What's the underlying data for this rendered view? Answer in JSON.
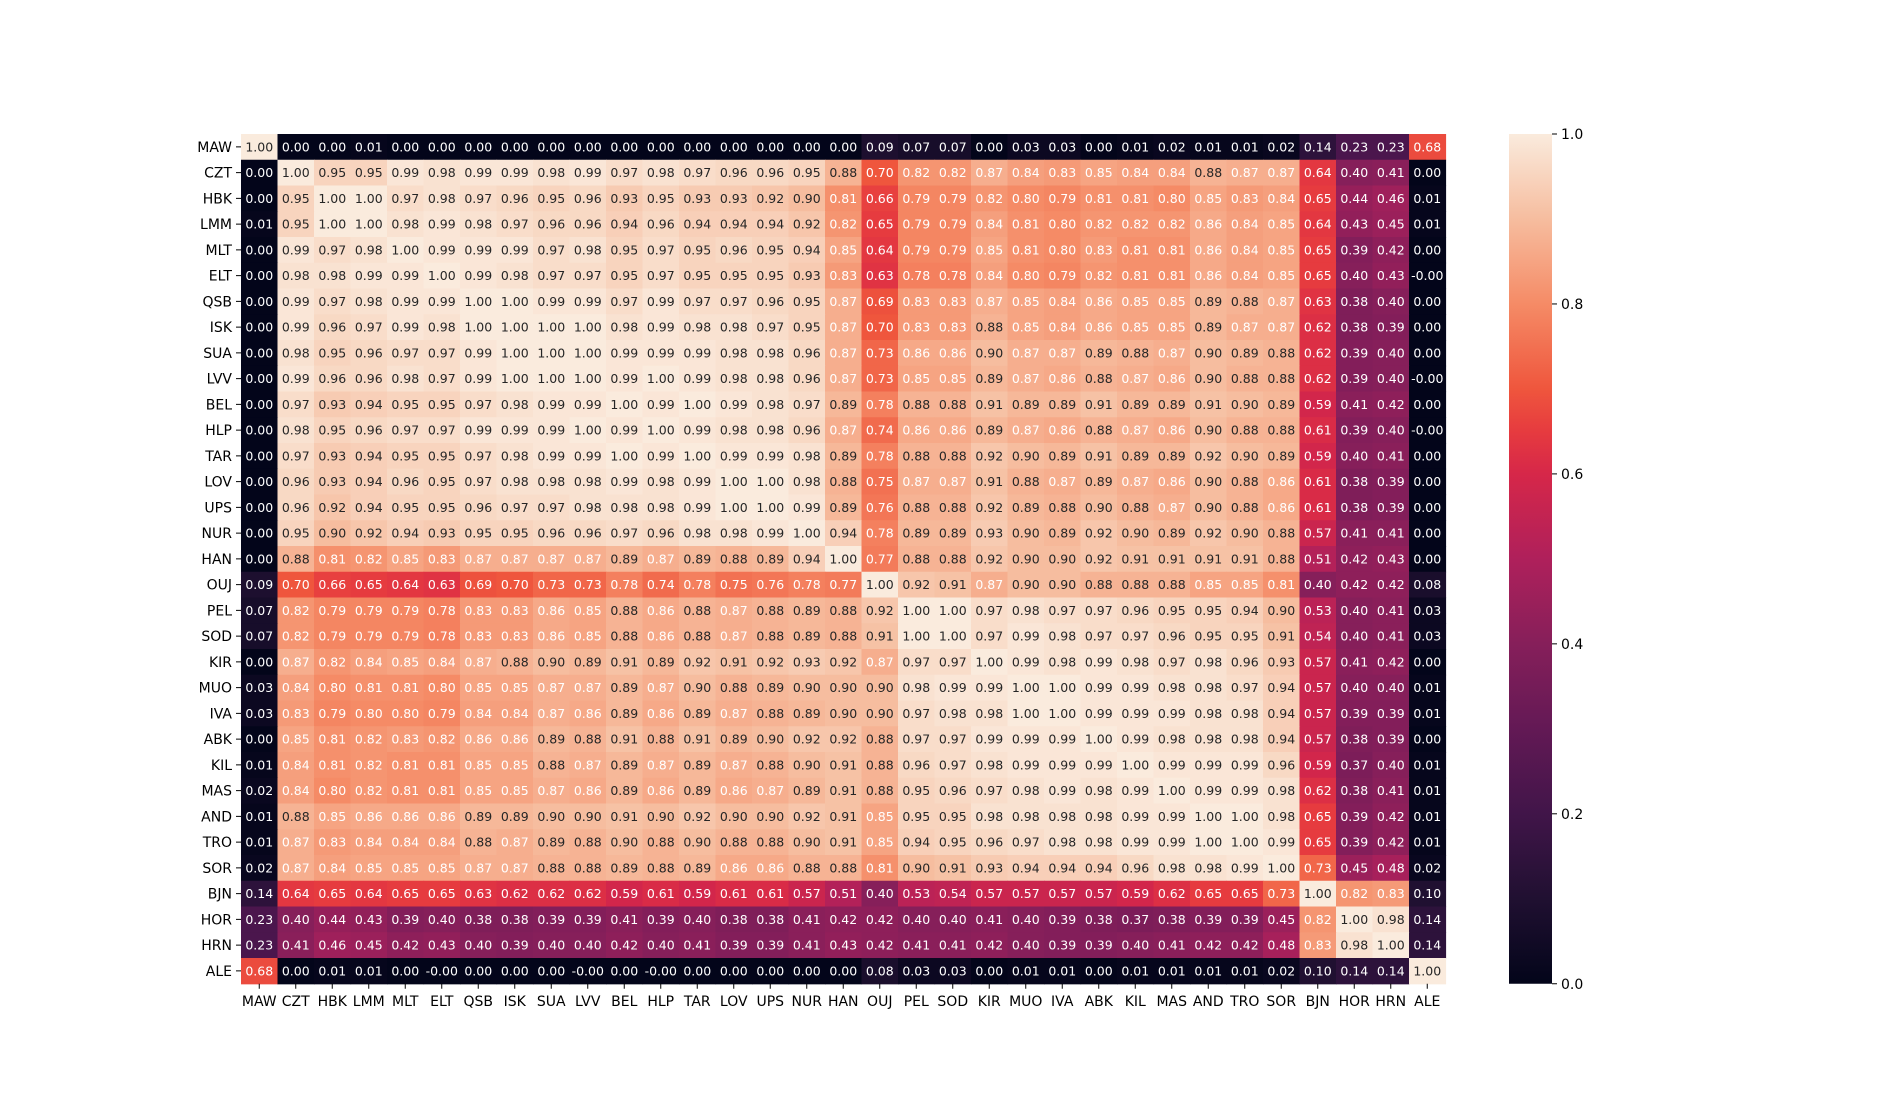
{
  "chart_data": {
    "type": "heatmap",
    "title": "",
    "xlabel": "",
    "ylabel": "",
    "labels": [
      "MAW",
      "CZT",
      "HBK",
      "LMM",
      "MLT",
      "ELT",
      "QSB",
      "ISK",
      "SUA",
      "LVV",
      "BEL",
      "HLP",
      "TAR",
      "LOV",
      "UPS",
      "NUR",
      "HAN",
      "OUJ",
      "PEL",
      "SOD",
      "KIR",
      "MUO",
      "IVA",
      "ABK",
      "KIL",
      "MAS",
      "AND",
      "TRO",
      "SOR",
      "BJN",
      "HOR",
      "HRN",
      "ALE"
    ],
    "values": [
      [
        "1.00",
        "0.00",
        "0.00",
        "0.01",
        "0.00",
        "0.00",
        "0.00",
        "0.00",
        "0.00",
        "0.00",
        "0.00",
        "0.00",
        "0.00",
        "0.00",
        "0.00",
        "0.00",
        "0.00",
        "0.09",
        "0.07",
        "0.07",
        "0.00",
        "0.03",
        "0.03",
        "0.00",
        "0.01",
        "0.02",
        "0.01",
        "0.01",
        "0.02",
        "0.14",
        "0.23",
        "0.23",
        "0.68"
      ],
      [
        "0.00",
        "1.00",
        "0.95",
        "0.95",
        "0.99",
        "0.98",
        "0.99",
        "0.99",
        "0.98",
        "0.99",
        "0.97",
        "0.98",
        "0.97",
        "0.96",
        "0.96",
        "0.95",
        "0.88",
        "0.70",
        "0.82",
        "0.82",
        "0.87",
        "0.84",
        "0.83",
        "0.85",
        "0.84",
        "0.84",
        "0.88",
        "0.87",
        "0.87",
        "0.64",
        "0.40",
        "0.41",
        "0.00"
      ],
      [
        "0.00",
        "0.95",
        "1.00",
        "1.00",
        "0.97",
        "0.98",
        "0.97",
        "0.96",
        "0.95",
        "0.96",
        "0.93",
        "0.95",
        "0.93",
        "0.93",
        "0.92",
        "0.90",
        "0.81",
        "0.66",
        "0.79",
        "0.79",
        "0.82",
        "0.80",
        "0.79",
        "0.81",
        "0.81",
        "0.80",
        "0.85",
        "0.83",
        "0.84",
        "0.65",
        "0.44",
        "0.46",
        "0.01"
      ],
      [
        "0.01",
        "0.95",
        "1.00",
        "1.00",
        "0.98",
        "0.99",
        "0.98",
        "0.97",
        "0.96",
        "0.96",
        "0.94",
        "0.96",
        "0.94",
        "0.94",
        "0.94",
        "0.92",
        "0.82",
        "0.65",
        "0.79",
        "0.79",
        "0.84",
        "0.81",
        "0.80",
        "0.82",
        "0.82",
        "0.82",
        "0.86",
        "0.84",
        "0.85",
        "0.64",
        "0.43",
        "0.45",
        "0.01"
      ],
      [
        "0.00",
        "0.99",
        "0.97",
        "0.98",
        "1.00",
        "0.99",
        "0.99",
        "0.99",
        "0.97",
        "0.98",
        "0.95",
        "0.97",
        "0.95",
        "0.96",
        "0.95",
        "0.94",
        "0.85",
        "0.64",
        "0.79",
        "0.79",
        "0.85",
        "0.81",
        "0.80",
        "0.83",
        "0.81",
        "0.81",
        "0.86",
        "0.84",
        "0.85",
        "0.65",
        "0.39",
        "0.42",
        "0.00"
      ],
      [
        "0.00",
        "0.98",
        "0.98",
        "0.99",
        "0.99",
        "1.00",
        "0.99",
        "0.98",
        "0.97",
        "0.97",
        "0.95",
        "0.97",
        "0.95",
        "0.95",
        "0.95",
        "0.93",
        "0.83",
        "0.63",
        "0.78",
        "0.78",
        "0.84",
        "0.80",
        "0.79",
        "0.82",
        "0.81",
        "0.81",
        "0.86",
        "0.84",
        "0.85",
        "0.65",
        "0.40",
        "0.43",
        "-0.00"
      ],
      [
        "0.00",
        "0.99",
        "0.97",
        "0.98",
        "0.99",
        "0.99",
        "1.00",
        "1.00",
        "0.99",
        "0.99",
        "0.97",
        "0.99",
        "0.97",
        "0.97",
        "0.96",
        "0.95",
        "0.87",
        "0.69",
        "0.83",
        "0.83",
        "0.87",
        "0.85",
        "0.84",
        "0.86",
        "0.85",
        "0.85",
        "0.89",
        "0.88",
        "0.87",
        "0.63",
        "0.38",
        "0.40",
        "0.00"
      ],
      [
        "0.00",
        "0.99",
        "0.96",
        "0.97",
        "0.99",
        "0.98",
        "1.00",
        "1.00",
        "1.00",
        "1.00",
        "0.98",
        "0.99",
        "0.98",
        "0.98",
        "0.97",
        "0.95",
        "0.87",
        "0.70",
        "0.83",
        "0.83",
        "0.88",
        "0.85",
        "0.84",
        "0.86",
        "0.85",
        "0.85",
        "0.89",
        "0.87",
        "0.87",
        "0.62",
        "0.38",
        "0.39",
        "0.00"
      ],
      [
        "0.00",
        "0.98",
        "0.95",
        "0.96",
        "0.97",
        "0.97",
        "0.99",
        "1.00",
        "1.00",
        "1.00",
        "0.99",
        "0.99",
        "0.99",
        "0.98",
        "0.98",
        "0.96",
        "0.87",
        "0.73",
        "0.86",
        "0.86",
        "0.90",
        "0.87",
        "0.87",
        "0.89",
        "0.88",
        "0.87",
        "0.90",
        "0.89",
        "0.88",
        "0.62",
        "0.39",
        "0.40",
        "0.00"
      ],
      [
        "0.00",
        "0.99",
        "0.96",
        "0.96",
        "0.98",
        "0.97",
        "0.99",
        "1.00",
        "1.00",
        "1.00",
        "0.99",
        "1.00",
        "0.99",
        "0.98",
        "0.98",
        "0.96",
        "0.87",
        "0.73",
        "0.85",
        "0.85",
        "0.89",
        "0.87",
        "0.86",
        "0.88",
        "0.87",
        "0.86",
        "0.90",
        "0.88",
        "0.88",
        "0.62",
        "0.39",
        "0.40",
        "-0.00"
      ],
      [
        "0.00",
        "0.97",
        "0.93",
        "0.94",
        "0.95",
        "0.95",
        "0.97",
        "0.98",
        "0.99",
        "0.99",
        "1.00",
        "0.99",
        "1.00",
        "0.99",
        "0.98",
        "0.97",
        "0.89",
        "0.78",
        "0.88",
        "0.88",
        "0.91",
        "0.89",
        "0.89",
        "0.91",
        "0.89",
        "0.89",
        "0.91",
        "0.90",
        "0.89",
        "0.59",
        "0.41",
        "0.42",
        "0.00"
      ],
      [
        "0.00",
        "0.98",
        "0.95",
        "0.96",
        "0.97",
        "0.97",
        "0.99",
        "0.99",
        "0.99",
        "1.00",
        "0.99",
        "1.00",
        "0.99",
        "0.98",
        "0.98",
        "0.96",
        "0.87",
        "0.74",
        "0.86",
        "0.86",
        "0.89",
        "0.87",
        "0.86",
        "0.88",
        "0.87",
        "0.86",
        "0.90",
        "0.88",
        "0.88",
        "0.61",
        "0.39",
        "0.40",
        "-0.00"
      ],
      [
        "0.00",
        "0.97",
        "0.93",
        "0.94",
        "0.95",
        "0.95",
        "0.97",
        "0.98",
        "0.99",
        "0.99",
        "1.00",
        "0.99",
        "1.00",
        "0.99",
        "0.99",
        "0.98",
        "0.89",
        "0.78",
        "0.88",
        "0.88",
        "0.92",
        "0.90",
        "0.89",
        "0.91",
        "0.89",
        "0.89",
        "0.92",
        "0.90",
        "0.89",
        "0.59",
        "0.40",
        "0.41",
        "0.00"
      ],
      [
        "0.00",
        "0.96",
        "0.93",
        "0.94",
        "0.96",
        "0.95",
        "0.97",
        "0.98",
        "0.98",
        "0.98",
        "0.99",
        "0.98",
        "0.99",
        "1.00",
        "1.00",
        "0.98",
        "0.88",
        "0.75",
        "0.87",
        "0.87",
        "0.91",
        "0.88",
        "0.87",
        "0.89",
        "0.87",
        "0.86",
        "0.90",
        "0.88",
        "0.86",
        "0.61",
        "0.38",
        "0.39",
        "0.00"
      ],
      [
        "0.00",
        "0.96",
        "0.92",
        "0.94",
        "0.95",
        "0.95",
        "0.96",
        "0.97",
        "0.97",
        "0.98",
        "0.98",
        "0.98",
        "0.99",
        "1.00",
        "1.00",
        "0.99",
        "0.89",
        "0.76",
        "0.88",
        "0.88",
        "0.92",
        "0.89",
        "0.88",
        "0.90",
        "0.88",
        "0.87",
        "0.90",
        "0.88",
        "0.86",
        "0.61",
        "0.38",
        "0.39",
        "0.00"
      ],
      [
        "0.00",
        "0.95",
        "0.90",
        "0.92",
        "0.94",
        "0.93",
        "0.95",
        "0.95",
        "0.96",
        "0.96",
        "0.97",
        "0.96",
        "0.98",
        "0.98",
        "0.99",
        "1.00",
        "0.94",
        "0.78",
        "0.89",
        "0.89",
        "0.93",
        "0.90",
        "0.89",
        "0.92",
        "0.90",
        "0.89",
        "0.92",
        "0.90",
        "0.88",
        "0.57",
        "0.41",
        "0.41",
        "0.00"
      ],
      [
        "0.00",
        "0.88",
        "0.81",
        "0.82",
        "0.85",
        "0.83",
        "0.87",
        "0.87",
        "0.87",
        "0.87",
        "0.89",
        "0.87",
        "0.89",
        "0.88",
        "0.89",
        "0.94",
        "1.00",
        "0.77",
        "0.88",
        "0.88",
        "0.92",
        "0.90",
        "0.90",
        "0.92",
        "0.91",
        "0.91",
        "0.91",
        "0.91",
        "0.88",
        "0.51",
        "0.42",
        "0.43",
        "0.00"
      ],
      [
        "0.09",
        "0.70",
        "0.66",
        "0.65",
        "0.64",
        "0.63",
        "0.69",
        "0.70",
        "0.73",
        "0.73",
        "0.78",
        "0.74",
        "0.78",
        "0.75",
        "0.76",
        "0.78",
        "0.77",
        "1.00",
        "0.92",
        "0.91",
        "0.87",
        "0.90",
        "0.90",
        "0.88",
        "0.88",
        "0.88",
        "0.85",
        "0.85",
        "0.81",
        "0.40",
        "0.42",
        "0.42",
        "0.08"
      ],
      [
        "0.07",
        "0.82",
        "0.79",
        "0.79",
        "0.79",
        "0.78",
        "0.83",
        "0.83",
        "0.86",
        "0.85",
        "0.88",
        "0.86",
        "0.88",
        "0.87",
        "0.88",
        "0.89",
        "0.88",
        "0.92",
        "1.00",
        "1.00",
        "0.97",
        "0.98",
        "0.97",
        "0.97",
        "0.96",
        "0.95",
        "0.95",
        "0.94",
        "0.90",
        "0.53",
        "0.40",
        "0.41",
        "0.03"
      ],
      [
        "0.07",
        "0.82",
        "0.79",
        "0.79",
        "0.79",
        "0.78",
        "0.83",
        "0.83",
        "0.86",
        "0.85",
        "0.88",
        "0.86",
        "0.88",
        "0.87",
        "0.88",
        "0.89",
        "0.88",
        "0.91",
        "1.00",
        "1.00",
        "0.97",
        "0.99",
        "0.98",
        "0.97",
        "0.97",
        "0.96",
        "0.95",
        "0.95",
        "0.91",
        "0.54",
        "0.40",
        "0.41",
        "0.03"
      ],
      [
        "0.00",
        "0.87",
        "0.82",
        "0.84",
        "0.85",
        "0.84",
        "0.87",
        "0.88",
        "0.90",
        "0.89",
        "0.91",
        "0.89",
        "0.92",
        "0.91",
        "0.92",
        "0.93",
        "0.92",
        "0.87",
        "0.97",
        "0.97",
        "1.00",
        "0.99",
        "0.98",
        "0.99",
        "0.98",
        "0.97",
        "0.98",
        "0.96",
        "0.93",
        "0.57",
        "0.41",
        "0.42",
        "0.00"
      ],
      [
        "0.03",
        "0.84",
        "0.80",
        "0.81",
        "0.81",
        "0.80",
        "0.85",
        "0.85",
        "0.87",
        "0.87",
        "0.89",
        "0.87",
        "0.90",
        "0.88",
        "0.89",
        "0.90",
        "0.90",
        "0.90",
        "0.98",
        "0.99",
        "0.99",
        "1.00",
        "1.00",
        "0.99",
        "0.99",
        "0.98",
        "0.98",
        "0.97",
        "0.94",
        "0.57",
        "0.40",
        "0.40",
        "0.01"
      ],
      [
        "0.03",
        "0.83",
        "0.79",
        "0.80",
        "0.80",
        "0.79",
        "0.84",
        "0.84",
        "0.87",
        "0.86",
        "0.89",
        "0.86",
        "0.89",
        "0.87",
        "0.88",
        "0.89",
        "0.90",
        "0.90",
        "0.97",
        "0.98",
        "0.98",
        "1.00",
        "1.00",
        "0.99",
        "0.99",
        "0.99",
        "0.98",
        "0.98",
        "0.94",
        "0.57",
        "0.39",
        "0.39",
        "0.01"
      ],
      [
        "0.00",
        "0.85",
        "0.81",
        "0.82",
        "0.83",
        "0.82",
        "0.86",
        "0.86",
        "0.89",
        "0.88",
        "0.91",
        "0.88",
        "0.91",
        "0.89",
        "0.90",
        "0.92",
        "0.92",
        "0.88",
        "0.97",
        "0.97",
        "0.99",
        "0.99",
        "0.99",
        "1.00",
        "0.99",
        "0.98",
        "0.98",
        "0.98",
        "0.94",
        "0.57",
        "0.38",
        "0.39",
        "0.00"
      ],
      [
        "0.01",
        "0.84",
        "0.81",
        "0.82",
        "0.81",
        "0.81",
        "0.85",
        "0.85",
        "0.88",
        "0.87",
        "0.89",
        "0.87",
        "0.89",
        "0.87",
        "0.88",
        "0.90",
        "0.91",
        "0.88",
        "0.96",
        "0.97",
        "0.98",
        "0.99",
        "0.99",
        "0.99",
        "1.00",
        "0.99",
        "0.99",
        "0.99",
        "0.96",
        "0.59",
        "0.37",
        "0.40",
        "0.01"
      ],
      [
        "0.02",
        "0.84",
        "0.80",
        "0.82",
        "0.81",
        "0.81",
        "0.85",
        "0.85",
        "0.87",
        "0.86",
        "0.89",
        "0.86",
        "0.89",
        "0.86",
        "0.87",
        "0.89",
        "0.91",
        "0.88",
        "0.95",
        "0.96",
        "0.97",
        "0.98",
        "0.99",
        "0.98",
        "0.99",
        "1.00",
        "0.99",
        "0.99",
        "0.98",
        "0.62",
        "0.38",
        "0.41",
        "0.01"
      ],
      [
        "0.01",
        "0.88",
        "0.85",
        "0.86",
        "0.86",
        "0.86",
        "0.89",
        "0.89",
        "0.90",
        "0.90",
        "0.91",
        "0.90",
        "0.92",
        "0.90",
        "0.90",
        "0.92",
        "0.91",
        "0.85",
        "0.95",
        "0.95",
        "0.98",
        "0.98",
        "0.98",
        "0.98",
        "0.99",
        "0.99",
        "1.00",
        "1.00",
        "0.98",
        "0.65",
        "0.39",
        "0.42",
        "0.01"
      ],
      [
        "0.01",
        "0.87",
        "0.83",
        "0.84",
        "0.84",
        "0.84",
        "0.88",
        "0.87",
        "0.89",
        "0.88",
        "0.90",
        "0.88",
        "0.90",
        "0.88",
        "0.88",
        "0.90",
        "0.91",
        "0.85",
        "0.94",
        "0.95",
        "0.96",
        "0.97",
        "0.98",
        "0.98",
        "0.99",
        "0.99",
        "1.00",
        "1.00",
        "0.99",
        "0.65",
        "0.39",
        "0.42",
        "0.01"
      ],
      [
        "0.02",
        "0.87",
        "0.84",
        "0.85",
        "0.85",
        "0.85",
        "0.87",
        "0.87",
        "0.88",
        "0.88",
        "0.89",
        "0.88",
        "0.89",
        "0.86",
        "0.86",
        "0.88",
        "0.88",
        "0.81",
        "0.90",
        "0.91",
        "0.93",
        "0.94",
        "0.94",
        "0.94",
        "0.96",
        "0.98",
        "0.98",
        "0.99",
        "1.00",
        "0.73",
        "0.45",
        "0.48",
        "0.02"
      ],
      [
        "0.14",
        "0.64",
        "0.65",
        "0.64",
        "0.65",
        "0.65",
        "0.63",
        "0.62",
        "0.62",
        "0.62",
        "0.59",
        "0.61",
        "0.59",
        "0.61",
        "0.61",
        "0.57",
        "0.51",
        "0.40",
        "0.53",
        "0.54",
        "0.57",
        "0.57",
        "0.57",
        "0.57",
        "0.59",
        "0.62",
        "0.65",
        "0.65",
        "0.73",
        "1.00",
        "0.82",
        "0.83",
        "0.10"
      ],
      [
        "0.23",
        "0.40",
        "0.44",
        "0.43",
        "0.39",
        "0.40",
        "0.38",
        "0.38",
        "0.39",
        "0.39",
        "0.41",
        "0.39",
        "0.40",
        "0.38",
        "0.38",
        "0.41",
        "0.42",
        "0.42",
        "0.40",
        "0.40",
        "0.41",
        "0.40",
        "0.39",
        "0.38",
        "0.37",
        "0.38",
        "0.39",
        "0.39",
        "0.45",
        "0.82",
        "1.00",
        "0.98",
        "0.14"
      ],
      [
        "0.23",
        "0.41",
        "0.46",
        "0.45",
        "0.42",
        "0.43",
        "0.40",
        "0.39",
        "0.40",
        "0.40",
        "0.42",
        "0.40",
        "0.41",
        "0.39",
        "0.39",
        "0.41",
        "0.43",
        "0.42",
        "0.41",
        "0.41",
        "0.42",
        "0.40",
        "0.39",
        "0.39",
        "0.40",
        "0.41",
        "0.42",
        "0.42",
        "0.48",
        "0.83",
        "0.98",
        "1.00",
        "0.14"
      ],
      [
        "0.68",
        "0.00",
        "0.01",
        "0.01",
        "0.00",
        "-0.00",
        "0.00",
        "0.00",
        "0.00",
        "-0.00",
        "0.00",
        "-0.00",
        "0.00",
        "0.00",
        "0.00",
        "0.00",
        "0.00",
        "0.08",
        "0.03",
        "0.03",
        "0.00",
        "0.01",
        "0.01",
        "0.00",
        "0.01",
        "0.01",
        "0.01",
        "0.01",
        "0.02",
        "0.10",
        "0.14",
        "0.14",
        "1.00"
      ]
    ],
    "vmin": 0.0,
    "vmax": 1.0,
    "colorscale": "rocket",
    "colorbar": {
      "ticks": [
        "0.0",
        "0.2",
        "0.4",
        "0.6",
        "0.8",
        "1.0"
      ],
      "tick_values": [
        0,
        0.2,
        0.4,
        0.6,
        0.8,
        1.0
      ]
    },
    "annotations": "values shown in each cell",
    "grid": false,
    "legend": "colorbar-right"
  }
}
